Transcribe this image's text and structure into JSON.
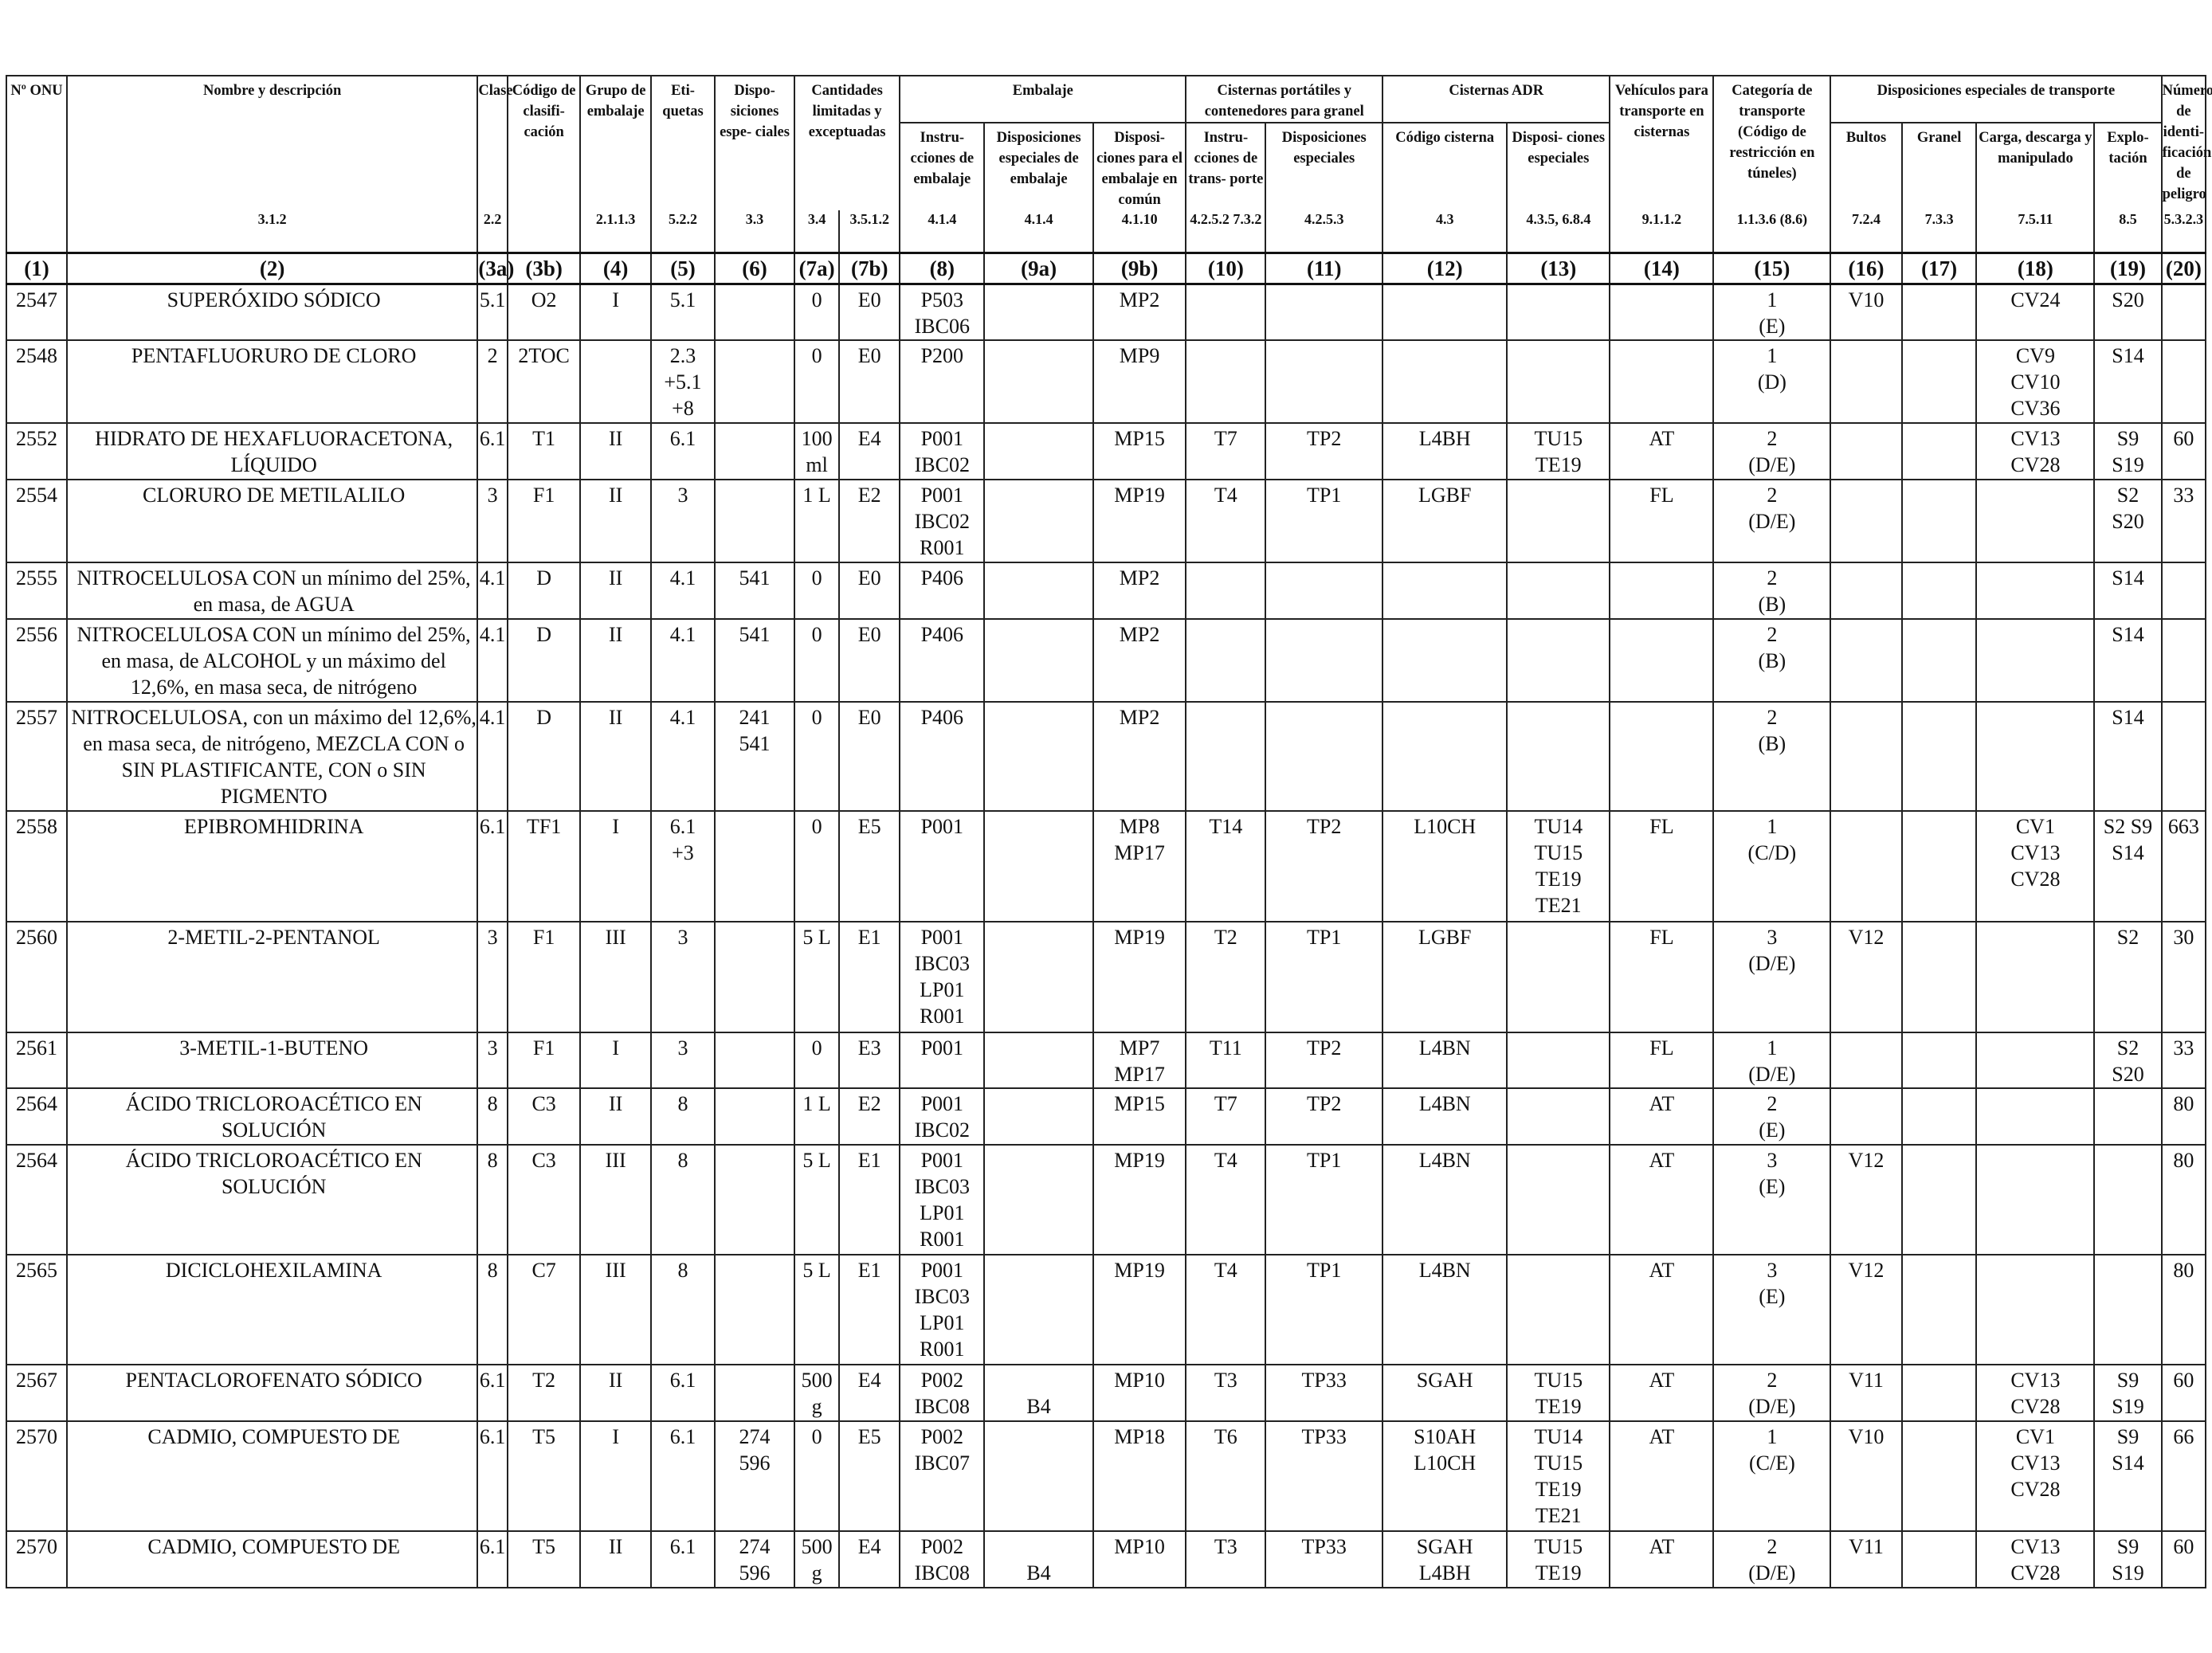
{
  "headers": {
    "onu": "Nº ONU",
    "nombre": "Nombre y descripción",
    "clase": "Clase",
    "codigo_clasificacion": "Código de clasifi- cación",
    "grupo_embalaje": "Grupo de embalaje",
    "etiquetas": "Eti- quetas",
    "disposiciones_especiales": "Dispo- siciones espe- ciales",
    "cantidades": "Cantidades limitadas y exceptuadas",
    "embalaje": "Embalaje",
    "embalaje_instrucciones": "Instru- cciones de embalaje",
    "embalaje_disposiciones": "Disposiciones especiales de embalaje",
    "embalaje_comun": "Disposi- ciones para el embalaje en común",
    "cisternas_portatiles": "Cisternas portátiles y contenedores para granel",
    "cp_instrucciones": "Instru- cciones de trans- porte",
    "cp_disposiciones": "Disposiciones especiales",
    "cisternas_adr": "Cisternas ADR",
    "adr_codigo": "Código cisterna",
    "adr_disposiciones": "Disposi- ciones especiales",
    "vehiculos": "Vehículos para transporte en cisternas",
    "categoria": "Categoría de transporte (Código de restricción en túneles)",
    "disposiciones_transporte": "Disposiciones especiales de transporte",
    "bultos": "Bultos",
    "granel": "Granel",
    "carga": "Carga, descarga y manipulado",
    "explotacion": "Explo- tación",
    "numero_peligro": "Número de identi- ficación de peligro"
  },
  "refs": [
    "",
    "3.1.2",
    "2.2",
    "",
    "2.1.1.3",
    "5.2.2",
    "3.3",
    "3.4",
    "3.5.1.2",
    "4.1.4",
    "4.1.4",
    "4.1.10",
    "4.2.5.2 7.3.2",
    "4.2.5.3",
    "4.3",
    "4.3.5, 6.8.4",
    "9.1.1.2",
    "1.1.3.6 (8.6)",
    "7.2.4",
    "7.3.3",
    "7.5.11",
    "8.5",
    "5.3.2.3"
  ],
  "column_numbers": [
    "(1)",
    "(2)",
    "(3a)",
    "(3b)",
    "(4)",
    "(5)",
    "(6)",
    "(7a)",
    "(7b)",
    "(8)",
    "(9a)",
    "(9b)",
    "(10)",
    "(11)",
    "(12)",
    "(13)",
    "(14)",
    "(15)",
    "(16)",
    "(17)",
    "(18)",
    "(19)",
    "(20)"
  ],
  "rows": [
    [
      "2547",
      "SUPERÓXIDO SÓDICO",
      "5.1",
      "O2",
      "I",
      "5.1",
      "",
      "0",
      "E0",
      "P503\nIBC06",
      "",
      "MP2",
      "",
      "",
      "",
      "",
      "",
      "1\n(E)",
      "V10",
      "",
      "CV24",
      "S20",
      ""
    ],
    [
      "2548",
      "PENTAFLUORURO DE CLORO",
      "2",
      "2TOC",
      "",
      "2.3\n+5.1\n+8",
      "",
      "0",
      "E0",
      "P200",
      "",
      "MP9",
      "",
      "",
      "",
      "",
      "",
      "1\n(D)",
      "",
      "",
      "CV9\nCV10\nCV36",
      "S14",
      ""
    ],
    [
      "2552",
      "HIDRATO DE HEXAFLUORACETONA, LÍQUIDO",
      "6.1",
      "T1",
      "II",
      "6.1",
      "",
      "100\nml",
      "E4",
      "P001\nIBC02",
      "",
      "MP15",
      "T7",
      "TP2",
      "L4BH",
      "TU15\nTE19",
      "AT",
      "2\n(D/E)",
      "",
      "",
      "CV13\nCV28",
      "S9\nS19",
      "60"
    ],
    [
      "2554",
      "CLORURO DE METILALILO",
      "3",
      "F1",
      "II",
      "3",
      "",
      "1 L",
      "E2",
      "P001\nIBC02\nR001",
      "",
      "MP19",
      "T4",
      "TP1",
      "LGBF",
      "",
      "FL",
      "2\n(D/E)",
      "",
      "",
      "",
      "S2\nS20",
      "33"
    ],
    [
      "2555",
      "NITROCELULOSA CON un mínimo del 25%, en masa, de AGUA",
      "4.1",
      "D",
      "II",
      "4.1",
      "541",
      "0",
      "E0",
      "P406",
      "",
      "MP2",
      "",
      "",
      "",
      "",
      "",
      "2\n(B)",
      "",
      "",
      "",
      "S14",
      ""
    ],
    [
      "2556",
      "NITROCELULOSA CON un mínimo del 25%, en masa, de ALCOHOL y un máximo del 12,6%, en masa seca, de nitrógeno",
      "4.1",
      "D",
      "II",
      "4.1",
      "541",
      "0",
      "E0",
      "P406",
      "",
      "MP2",
      "",
      "",
      "",
      "",
      "",
      "2\n(B)",
      "",
      "",
      "",
      "S14",
      ""
    ],
    [
      "2557",
      "NITROCELULOSA, con un máximo del 12,6%, en masa seca, de nitrógeno, MEZCLA CON o SIN PLASTIFICANTE, CON o SIN PIGMENTO",
      "4.1",
      "D",
      "II",
      "4.1",
      "241\n541",
      "0",
      "E0",
      "P406",
      "",
      "MP2",
      "",
      "",
      "",
      "",
      "",
      "2\n(B)",
      "",
      "",
      "",
      "S14",
      ""
    ],
    [
      "2558",
      "EPIBROMHIDRINA",
      "6.1",
      "TF1",
      "I",
      "6.1\n+3",
      "",
      "0",
      "E5",
      "P001",
      "",
      "MP8\nMP17",
      "T14",
      "TP2",
      "L10CH",
      "TU14\nTU15\nTE19\nTE21",
      "FL",
      "1\n(C/D)",
      "",
      "",
      "CV1\nCV13\nCV28",
      "S2 S9\nS14",
      "663"
    ],
    [
      "2560",
      "2-METIL-2-PENTANOL",
      "3",
      "F1",
      "III",
      "3",
      "",
      "5 L",
      "E1",
      "P001\nIBC03\nLP01\nR001",
      "",
      "MP19",
      "T2",
      "TP1",
      "LGBF",
      "",
      "FL",
      "3\n(D/E)",
      "V12",
      "",
      "",
      "S2",
      "30"
    ],
    [
      "2561",
      "3-METIL-1-BUTENO",
      "3",
      "F1",
      "I",
      "3",
      "",
      "0",
      "E3",
      "P001",
      "",
      "MP7\nMP17",
      "T11",
      "TP2",
      "L4BN",
      "",
      "FL",
      "1\n(D/E)",
      "",
      "",
      "",
      "S2\nS20",
      "33"
    ],
    [
      "2564",
      "ÁCIDO TRICLOROACÉTICO EN SOLUCIÓN",
      "8",
      "C3",
      "II",
      "8",
      "",
      "1 L",
      "E2",
      "P001\nIBC02",
      "",
      "MP15",
      "T7",
      "TP2",
      "L4BN",
      "",
      "AT",
      "2\n(E)",
      "",
      "",
      "",
      "",
      "80"
    ],
    [
      "2564",
      "ÁCIDO TRICLOROACÉTICO EN SOLUCIÓN",
      "8",
      "C3",
      "III",
      "8",
      "",
      "5 L",
      "E1",
      "P001\nIBC03\nLP01\nR001",
      "",
      "MP19",
      "T4",
      "TP1",
      "L4BN",
      "",
      "AT",
      "3\n(E)",
      "V12",
      "",
      "",
      "",
      "80"
    ],
    [
      "2565",
      "DICICLOHEXILAMINA",
      "8",
      "C7",
      "III",
      "8",
      "",
      "5 L",
      "E1",
      "P001\nIBC03\nLP01\nR001",
      "",
      "MP19",
      "T4",
      "TP1",
      "L4BN",
      "",
      "AT",
      "3\n(E)",
      "V12",
      "",
      "",
      "",
      "80"
    ],
    [
      "2567",
      "PENTACLOROFENATO SÓDICO",
      "6.1",
      "T2",
      "II",
      "6.1",
      "",
      "500\ng",
      "E4",
      "P002\nIBC08",
      "\nB4",
      "MP10",
      "T3",
      "TP33",
      "SGAH",
      "TU15\nTE19",
      "AT",
      "2\n(D/E)",
      "V11",
      "",
      "CV13\nCV28",
      "S9\nS19",
      "60"
    ],
    [
      "2570",
      "CADMIO, COMPUESTO DE",
      "6.1",
      "T5",
      "I",
      "6.1",
      "274\n596",
      "0",
      "E5",
      "P002\nIBC07",
      "",
      "MP18",
      "T6",
      "TP33",
      "S10AH\nL10CH",
      "TU14\nTU15\nTE19\nTE21",
      "AT",
      "1\n(C/E)",
      "V10",
      "",
      "CV1\nCV13\nCV28",
      "S9\nS14",
      "66"
    ],
    [
      "2570",
      "CADMIO, COMPUESTO DE",
      "6.1",
      "T5",
      "II",
      "6.1",
      "274\n596",
      "500\ng",
      "E4",
      "P002\nIBC08",
      "\nB4",
      "MP10",
      "T3",
      "TP33",
      "SGAH\nL4BH",
      "TU15\nTE19",
      "AT",
      "2\n(D/E)",
      "V11",
      "",
      "CV13\nCV28",
      "S9\nS19",
      "60"
    ]
  ]
}
